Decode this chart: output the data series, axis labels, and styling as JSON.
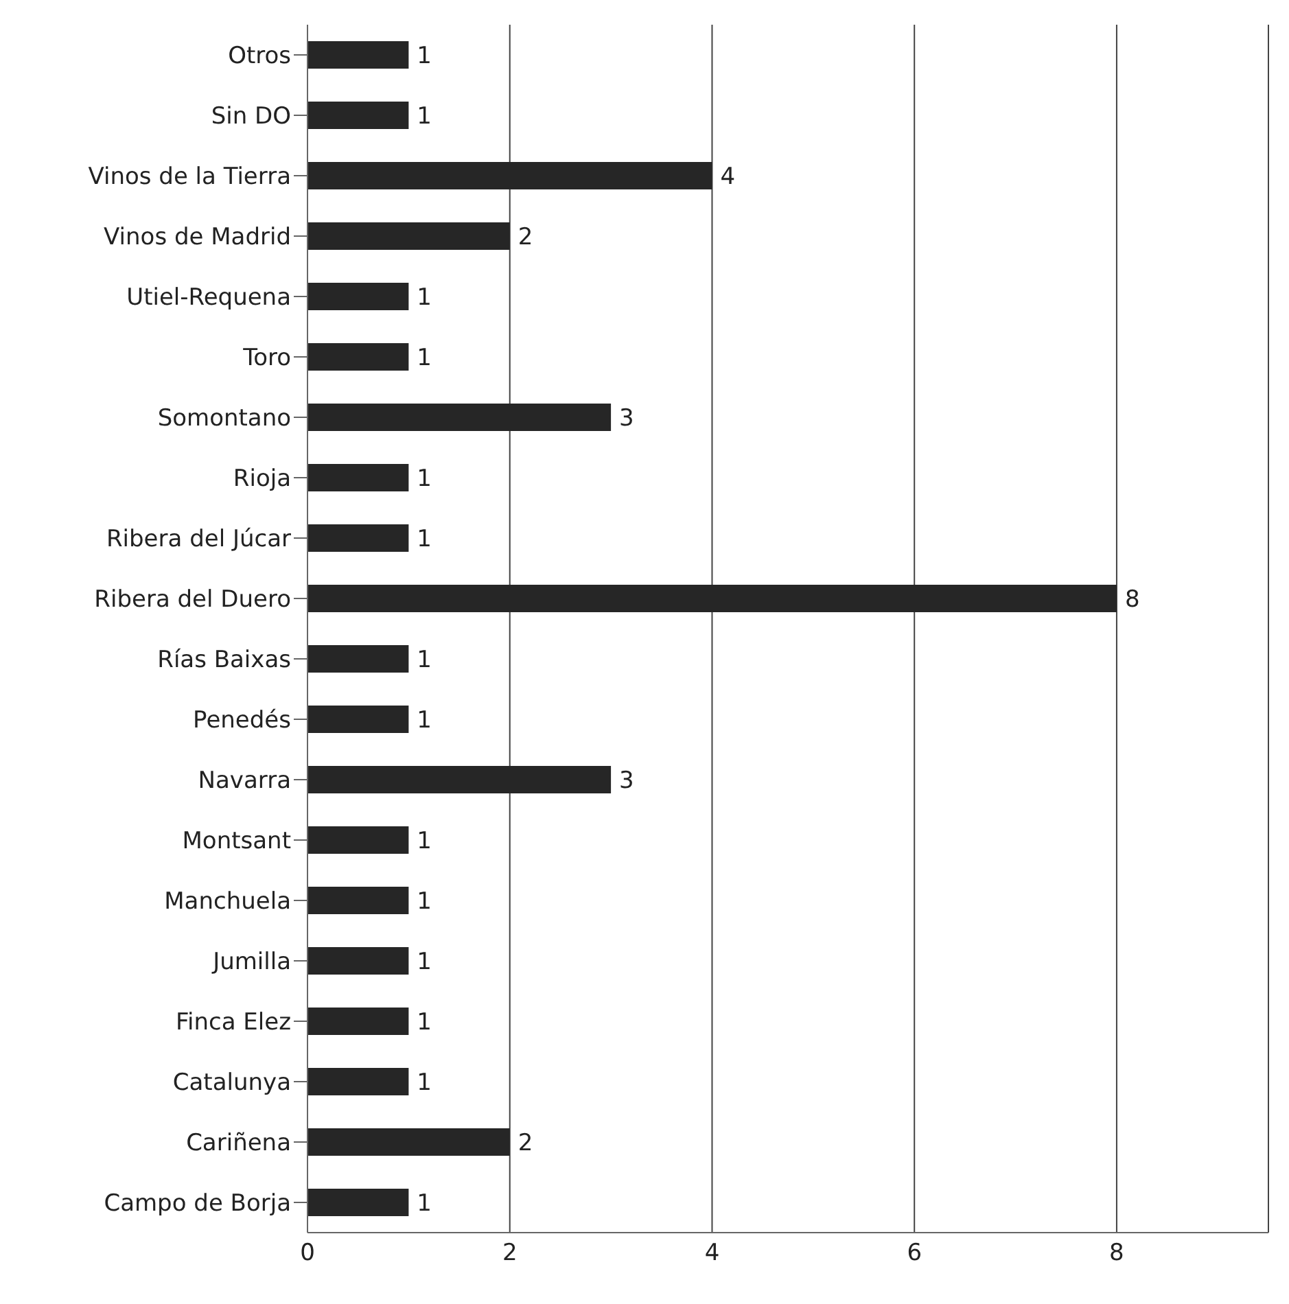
{
  "chart_data": {
    "type": "bar",
    "orientation": "horizontal",
    "categories": [
      "Otros",
      "Sin DO",
      "Vinos de la Tierra",
      "Vinos de Madrid",
      "Utiel-Requena",
      "Toro",
      "Somontano",
      "Rioja",
      "Ribera del Júcar",
      "Ribera del Duero",
      "Rías Baixas",
      "Penedés",
      "Navarra",
      "Montsant",
      "Manchuela",
      "Jumilla",
      "Finca Elez",
      "Catalunya",
      "Cariñena",
      "Campo de Borja"
    ],
    "values": [
      1,
      1,
      4,
      2,
      1,
      1,
      3,
      1,
      1,
      8,
      1,
      1,
      3,
      1,
      1,
      1,
      1,
      1,
      2,
      1
    ],
    "color": "#262626",
    "xlim": [
      0,
      9.5
    ],
    "xticks": [
      0,
      2,
      4,
      6,
      8
    ],
    "grid": "x",
    "data_labels": true
  }
}
